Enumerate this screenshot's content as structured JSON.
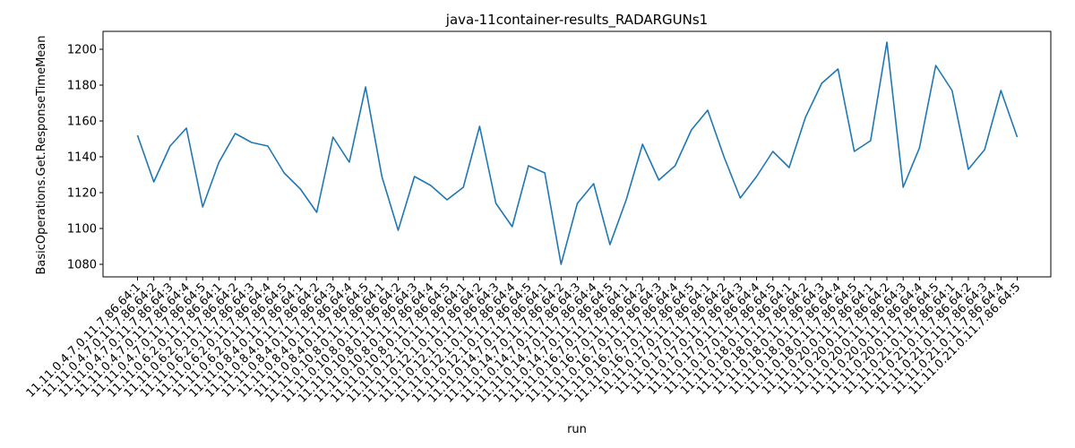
{
  "chart_data": {
    "type": "line",
    "title": "java-11container-results_RADARGUNs1",
    "xlabel": "run",
    "ylabel": "BasicOperations.Get.ResponseTimeMean",
    "ylim": [
      1073,
      1210
    ],
    "yticks": [
      1080,
      1100,
      1120,
      1140,
      1160,
      1180,
      1200
    ],
    "grid": false,
    "color": "#1f77b4",
    "categories": [
      "11.11.0.4.7.0.11.7.86.64:1",
      "11.11.0.4.7.0.11.7.86.64:2",
      "11.11.0.4.7.0.11.7.86.64:3",
      "11.11.0.4.7.0.11.7.86.64:4",
      "11.11.0.4.7.0.11.7.86.64:5",
      "11.11.0.6.2.0.11.7.86.64:1",
      "11.11.0.6.2.0.11.7.86.64:2",
      "11.11.0.6.2.0.11.7.86.64:3",
      "11.11.0.6.2.0.11.7.86.64:4",
      "11.11.0.6.2.0.11.7.86.64:5",
      "11.11.0.8.4.0.11.7.86.64:1",
      "11.11.0.8.4.0.11.7.86.64:2",
      "11.11.0.8.4.0.11.7.86.64:3",
      "11.11.0.8.4.0.11.7.86.64:4",
      "11.11.0.8.4.0.11.7.86.64:5",
      "11.11.0.10.8.0.11.7.86.64:1",
      "11.11.0.10.8.0.11.7.86.64:2",
      "11.11.0.10.8.0.11.7.86.64:3",
      "11.11.0.10.8.0.11.7.86.64:4",
      "11.11.0.10.8.0.11.7.86.64:5",
      "11.11.0.12.1.0.11.7.86.64:1",
      "11.11.0.12.1.0.11.7.86.64:2",
      "11.11.0.12.1.0.11.7.86.64:3",
      "11.11.0.12.1.0.11.7.86.64:4",
      "11.11.0.12.1.0.11.7.86.64:5",
      "11.11.0.14.7.0.11.7.86.64:1",
      "11.11.0.14.7.0.11.7.86.64:2",
      "11.11.0.14.7.0.11.7.86.64:3",
      "11.11.0.14.7.0.11.7.86.64:4",
      "11.11.0.14.7.0.11.7.86.64:5",
      "11.11.0.16.7.0.11.7.86.64:1",
      "11.11.0.16.7.0.11.7.86.64:2",
      "11.11.0.16.7.0.11.7.86.64:3",
      "11.11.0.16.7.0.11.7.86.64:4",
      "11.11.0.16.7.0.11.7.86.64:5",
      "11.11.0.17.0.11.7.86.64:1",
      "11.11.0.17.0.11.7.86.64:2",
      "11.11.0.17.0.11.7.86.64:3",
      "11.11.0.17.0.11.7.86.64:4",
      "11.11.0.17.0.11.7.86.64:5",
      "11.11.0.18.0.11.7.86.64:1",
      "11.11.0.18.0.11.7.86.64:2",
      "11.11.0.18.0.11.7.86.64:3",
      "11.11.0.18.0.11.7.86.64:4",
      "11.11.0.18.0.11.7.86.64:5",
      "11.11.0.20.0.11.7.86.64:1",
      "11.11.0.20.0.11.7.86.64:2",
      "11.11.0.20.0.11.7.86.64:3",
      "11.11.0.20.0.11.7.86.64:4",
      "11.11.0.20.0.11.7.86.64:5",
      "11.11.0.21.0.11.7.86.64:1",
      "11.11.0.21.0.11.7.86.64:2",
      "11.11.0.21.0.11.7.86.64:3",
      "11.11.0.21.0.11.7.86.64:4",
      "11.11.0.21.0.11.7.86.64:5"
    ],
    "values": [
      1152,
      1126,
      1146,
      1156,
      1112,
      1137,
      1153,
      1148,
      1146,
      1131,
      1122,
      1109,
      1151,
      1137,
      1179,
      1129,
      1099,
      1129,
      1124,
      1116,
      1123,
      1157,
      1114,
      1101,
      1135,
      1131,
      1080,
      1114,
      1125,
      1091,
      1116,
      1147,
      1127,
      1135,
      1155,
      1166,
      1140,
      1117,
      1129,
      1143,
      1134,
      1162,
      1181,
      1189,
      1143,
      1149,
      1204,
      1123,
      1145,
      1191,
      1177,
      1133,
      1144,
      1177,
      1151
    ]
  }
}
